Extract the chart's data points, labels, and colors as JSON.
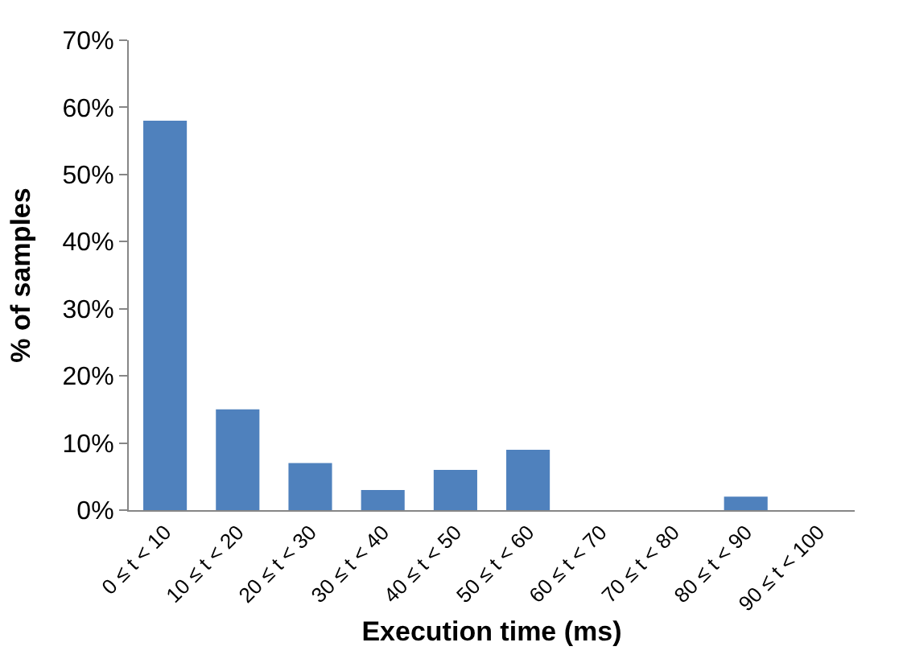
{
  "chart_data": {
    "type": "bar",
    "xlabel": "Execution time (ms)",
    "ylabel": "% of samples",
    "categories": [
      "0 ≤ t < 10",
      "10 ≤ t < 20",
      "20 ≤ t < 30",
      "30 ≤ t < 40",
      "40 ≤ t < 50",
      "50 ≤ t < 60",
      "60 ≤ t < 70",
      "70 ≤ t < 80",
      "80 ≤ t < 90",
      "90 ≤ t < 100"
    ],
    "values": [
      58,
      15,
      7,
      3,
      6,
      9,
      0,
      0,
      2,
      0
    ],
    "color": "#4f81bd",
    "ylim": [
      0,
      70
    ],
    "yticks": [
      {
        "value": 0,
        "label": "0%"
      },
      {
        "value": 10,
        "label": "10%"
      },
      {
        "value": 20,
        "label": "20%"
      },
      {
        "value": 30,
        "label": "30%"
      },
      {
        "value": 40,
        "label": "40%"
      },
      {
        "value": 50,
        "label": "50%"
      },
      {
        "value": 60,
        "label": "60%"
      },
      {
        "value": 70,
        "label": "70%"
      }
    ],
    "grid": false,
    "legend": false
  }
}
